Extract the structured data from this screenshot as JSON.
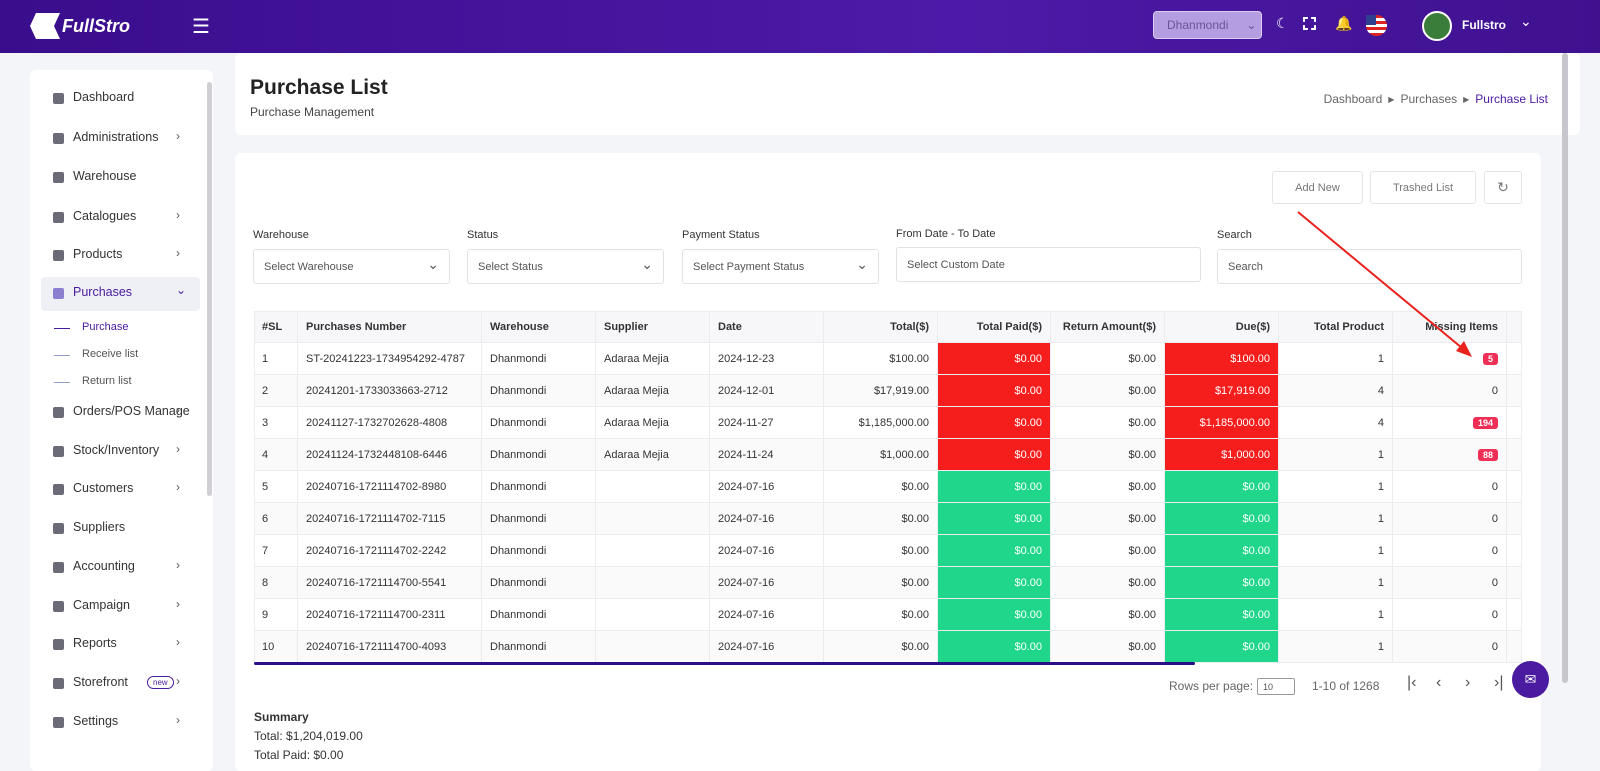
{
  "header": {
    "logo": "FullStro",
    "branch": "Dhanmondi",
    "user": "Fullstro"
  },
  "sidebar": {
    "items": [
      "Dashboard",
      "Administrations",
      "Warehouse",
      "Catalogues",
      "Products",
      "Purchases",
      "Orders/POS Manage",
      "Stock/Inventory",
      "Customers",
      "Suppliers",
      "Accounting",
      "Campaign",
      "Reports",
      "Storefront",
      "Settings"
    ],
    "submenu": [
      "Purchase",
      "Receive list",
      "Return list"
    ],
    "badge": "new"
  },
  "page": {
    "title": "Purchase List",
    "subtitle": "Purchase Management",
    "breadcrumb": [
      "Dashboard",
      "Purchases",
      "Purchase List"
    ]
  },
  "buttons": [
    "Add New",
    "Trashed List"
  ],
  "filters": [
    {
      "label": "Warehouse",
      "placeholder": "Select Warehouse"
    },
    {
      "label": "Status",
      "placeholder": "Select Status"
    },
    {
      "label": "Payment Status",
      "placeholder": "Select Payment Status"
    },
    {
      "label": "From Date - To Date",
      "placeholder": "Select Custom Date"
    },
    {
      "label": "Search",
      "placeholder": "Search"
    }
  ],
  "table": {
    "columns": [
      "#SL",
      "Purchases Number",
      "Warehouse",
      "Supplier",
      "Date",
      "Total($)",
      "Total Paid($)",
      "Return Amount($)",
      "Due($)",
      "Total Product",
      "Missing Items"
    ],
    "rows": [
      [
        "1",
        "ST-20241223-1734954292-4787",
        "Dhanmondi",
        "Adaraa Mejia",
        "2024-12-23",
        "$100.00",
        "$0.00",
        "$0.00",
        "$100.00",
        "1",
        "5"
      ],
      [
        "2",
        "20241201-1733033663-2712",
        "Dhanmondi",
        "Adaraa Mejia",
        "2024-12-01",
        "$17,919.00",
        "$0.00",
        "$0.00",
        "$17,919.00",
        "4",
        "0"
      ],
      [
        "3",
        "20241127-1732702628-4808",
        "Dhanmondi",
        "Adaraa Mejia",
        "2024-11-27",
        "$1,185,000.00",
        "$0.00",
        "$0.00",
        "$1,185,000.00",
        "4",
        "194"
      ],
      [
        "4",
        "20241124-1732448108-6446",
        "Dhanmondi",
        "Adaraa Mejia",
        "2024-11-24",
        "$1,000.00",
        "$0.00",
        "$0.00",
        "$1,000.00",
        "1",
        "88"
      ],
      [
        "5",
        "20240716-1721114702-8980",
        "Dhanmondi",
        null,
        "2024-07-16",
        "$0.00",
        "$0.00",
        "$0.00",
        "$0.00",
        "1",
        "0"
      ],
      [
        "6",
        "20240716-1721114702-7115",
        "Dhanmondi",
        null,
        "2024-07-16",
        "$0.00",
        "$0.00",
        "$0.00",
        "$0.00",
        "1",
        "0"
      ],
      [
        "7",
        "20240716-1721114702-2242",
        "Dhanmondi",
        null,
        "2024-07-16",
        "$0.00",
        "$0.00",
        "$0.00",
        "$0.00",
        "1",
        "0"
      ],
      [
        "8",
        "20240716-1721114700-5541",
        "Dhanmondi",
        null,
        "2024-07-16",
        "$0.00",
        "$0.00",
        "$0.00",
        "$0.00",
        "1",
        "0"
      ],
      [
        "9",
        "20240716-1721114700-2311",
        "Dhanmondi",
        null,
        "2024-07-16",
        "$0.00",
        "$0.00",
        "$0.00",
        "$0.00",
        "1",
        "0"
      ],
      [
        "10",
        "20240716-1721114700-4093",
        "Dhanmondi",
        null,
        "2024-07-16",
        "$0.00",
        "$0.00",
        "$0.00",
        "$0.00",
        "1",
        "0"
      ]
    ]
  },
  "pagination": {
    "rows_label": "Rows per page:",
    "rows_value": "10",
    "range": "1-10 of 1268"
  },
  "summary": {
    "title": "Summary",
    "lines": [
      "Total: $1,204,019.00",
      "Total Paid: $0.00"
    ]
  }
}
